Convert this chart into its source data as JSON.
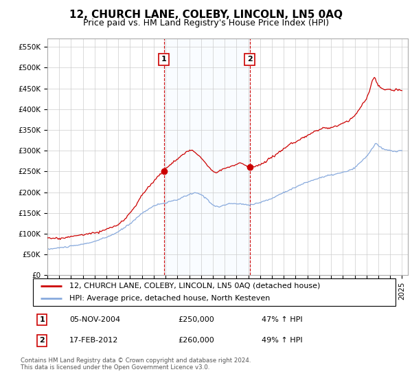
{
  "title": "12, CHURCH LANE, COLEBY, LINCOLN, LN5 0AQ",
  "subtitle": "Price paid vs. HM Land Registry's House Price Index (HPI)",
  "ylabel_ticks": [
    "£0",
    "£50K",
    "£100K",
    "£150K",
    "£200K",
    "£250K",
    "£300K",
    "£350K",
    "£400K",
    "£450K",
    "£500K",
    "£550K"
  ],
  "yticks": [
    0,
    50000,
    100000,
    150000,
    200000,
    250000,
    300000,
    350000,
    400000,
    450000,
    500000,
    550000
  ],
  "ylim": [
    0,
    570000
  ],
  "xlim_start": 1995.0,
  "xlim_end": 2025.5,
  "red_line_color": "#cc0000",
  "blue_line_color": "#88aadd",
  "shade_color": "#ddeeff",
  "marker_color": "#cc0000",
  "sale1_x": 2004.85,
  "sale1_y": 250000,
  "sale2_x": 2012.12,
  "sale2_y": 260000,
  "legend_label1": "12, CHURCH LANE, COLEBY, LINCOLN, LN5 0AQ (detached house)",
  "legend_label2": "HPI: Average price, detached house, North Kesteven",
  "annotation1_label": "1",
  "annotation1_date": "05-NOV-2004",
  "annotation1_price": "£250,000",
  "annotation1_hpi": "47% ↑ HPI",
  "annotation2_label": "2",
  "annotation2_date": "17-FEB-2012",
  "annotation2_price": "£260,000",
  "annotation2_hpi": "49% ↑ HPI",
  "footer": "Contains HM Land Registry data © Crown copyright and database right 2024.\nThis data is licensed under the Open Government Licence v3.0.",
  "background_color": "#ffffff",
  "grid_color": "#cccccc",
  "title_fontsize": 11,
  "subtitle_fontsize": 9,
  "tick_fontsize": 7.5,
  "legend_fontsize": 8,
  "annot_fontsize": 8
}
